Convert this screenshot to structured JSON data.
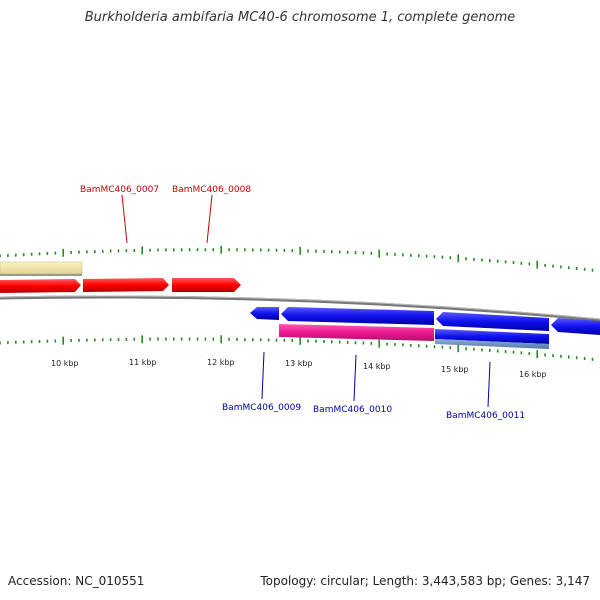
{
  "title": "Burkholderia ambifaria MC40-6 chromosome 1, complete genome",
  "footer": {
    "accession": "Accession: NC_010551",
    "summary": "Topology: circular; Length: 3,443,583 bp; Genes: 3,147"
  },
  "colors": {
    "forward_label": "#cc0000",
    "reverse_label": "#0000aa",
    "tick": "#2a8a2a",
    "backbone": "#888888"
  },
  "ticks": [
    {
      "label": "10 kbp"
    },
    {
      "label": "11 kbp"
    },
    {
      "label": "12 kbp"
    },
    {
      "label": "13 kbp"
    },
    {
      "label": "14 kbp"
    },
    {
      "label": "15 kbp"
    },
    {
      "label": "16 kbp"
    }
  ],
  "forward_genes": [
    {
      "label": "BamMC406_0007"
    },
    {
      "label": "BamMC406_0008"
    }
  ],
  "reverse_genes": [
    {
      "label": "BamMC406_0009"
    },
    {
      "label": "BamMC406_0010"
    },
    {
      "label": "BamMC406_0011"
    }
  ]
}
